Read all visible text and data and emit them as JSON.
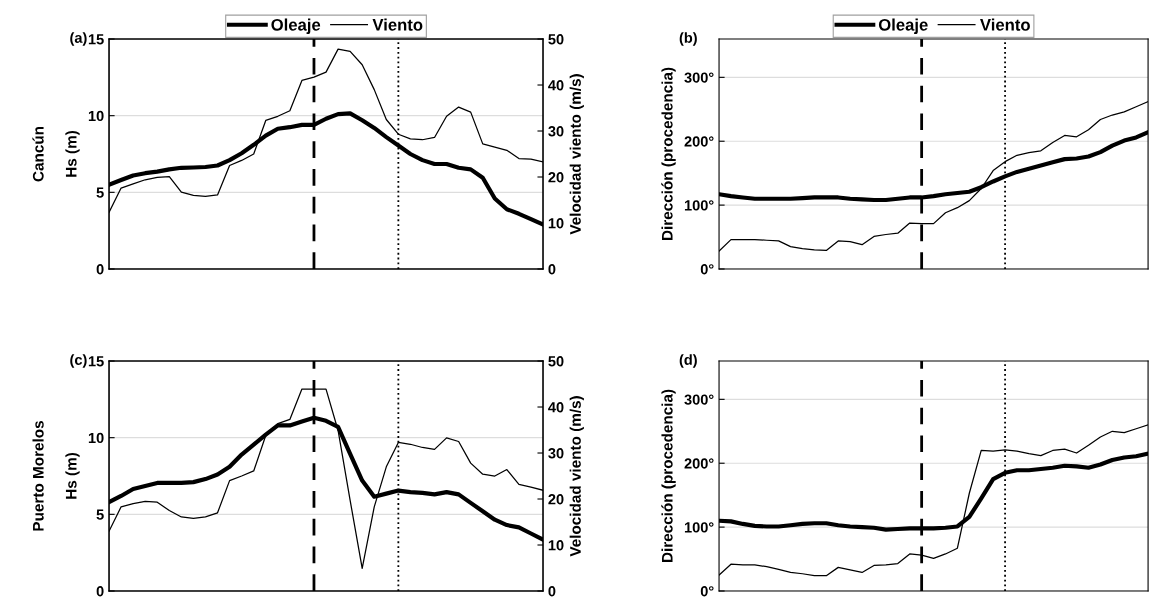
{
  "chart_data": [
    {
      "type": "line",
      "title": "(a)",
      "annotations": [
        "Cancún"
      ],
      "ylabel": "Hs (m)",
      "y2label": "Velocidad viento (m/s)",
      "categories": [
        null,
        null,
        null,
        null,
        null,
        null,
        null,
        null,
        null,
        null,
        null,
        null,
        null,
        null,
        null,
        null,
        null,
        null,
        null,
        null,
        null,
        null,
        null,
        null,
        null,
        null,
        null,
        null,
        null,
        null,
        null,
        null,
        null,
        null,
        null,
        null,
        null
      ],
      "series": [
        {
          "name": "Oleaje",
          "color": "#000000",
          "values": [
            5.5,
            5.8,
            6.1,
            6.25,
            6.35,
            6.5,
            6.6,
            6.62,
            6.65,
            6.75,
            7.1,
            7.55,
            8.1,
            8.7,
            9.15,
            9.25,
            9.4,
            9.4,
            9.8,
            10.1,
            10.15,
            9.7,
            9.2,
            8.6,
            8.05,
            7.5,
            7.1,
            6.85,
            6.85,
            6.6,
            6.5,
            5.95,
            4.6,
            3.9,
            3.6,
            3.25,
            2.9
          ]
        },
        {
          "name": "Viento",
          "color": "#000000",
          "axis": "y2",
          "values": [
            12.3,
            17.6,
            18.5,
            19.4,
            19.9,
            20.1,
            16.7,
            16.0,
            15.8,
            16.1,
            22.5,
            23.6,
            25.0,
            32.3,
            33.2,
            34.4,
            41.0,
            41.7,
            42.8,
            47.8,
            47.3,
            44.4,
            39.0,
            32.5,
            29.3,
            28.3,
            28.1,
            28.6,
            33.2,
            35.2,
            34.1,
            27.2,
            26.5,
            25.8,
            24.0,
            23.9,
            23.3
          ]
        }
      ],
      "ylim": [
        0,
        15
      ],
      "yticks": [
        0,
        5,
        10,
        15
      ],
      "y2lim": [
        0,
        50
      ],
      "y2ticks": [
        0,
        10,
        20,
        30,
        40,
        50
      ],
      "grid": "y",
      "legend": "top"
    },
    {
      "type": "line",
      "title": "(b)",
      "ylabel": "Dirección (procedencia)",
      "categories": [
        null,
        null,
        null,
        null,
        null,
        null,
        null,
        null,
        null,
        null,
        null,
        null,
        null,
        null,
        null,
        null,
        null,
        null,
        null,
        null,
        null,
        null,
        null,
        null,
        null,
        null,
        null,
        null,
        null,
        null,
        null,
        null,
        null,
        null,
        null,
        null,
        null
      ],
      "series": [
        {
          "name": "Oleaje",
          "color": "#000000",
          "values": [
            117,
            114,
            112,
            110,
            110,
            110,
            110,
            111,
            112,
            112,
            112,
            110,
            109,
            108,
            108,
            110,
            112,
            112,
            114,
            117,
            119,
            121,
            128,
            137,
            145,
            152,
            157,
            162,
            167,
            172,
            173,
            176,
            183,
            193,
            201,
            206,
            214
          ]
        },
        {
          "name": "Viento",
          "color": "#000000",
          "values": [
            28,
            46,
            46,
            46,
            45,
            44,
            35,
            32,
            30,
            29,
            44,
            43,
            38,
            51,
            54,
            56,
            72,
            71,
            71,
            88,
            96,
            107,
            126,
            154,
            168,
            178,
            182,
            185,
            198,
            209,
            207,
            218,
            234,
            241,
            246,
            254,
            262
          ]
        }
      ],
      "ylim": [
        0,
        360
      ],
      "yticks": [
        {
          "value": 0,
          "label": "0°"
        },
        {
          "value": 100,
          "label": "100°"
        },
        {
          "value": 200,
          "label": "200°"
        },
        {
          "value": 300,
          "label": "300°"
        }
      ],
      "grid": "y",
      "legend": "top"
    },
    {
      "type": "line",
      "title": "(c)",
      "annotations": [
        "Puerto Morelos"
      ],
      "ylabel": "Hs (m)",
      "y2label": "Velocidad viento (m/s)",
      "categories": [
        null,
        null,
        null,
        null,
        null,
        null,
        null,
        null,
        null,
        null,
        null,
        null,
        null,
        null,
        null,
        null,
        null,
        null,
        null,
        null,
        null,
        null,
        null,
        null,
        null,
        null,
        null,
        null,
        null,
        null,
        null,
        null,
        null,
        null,
        null,
        null,
        null
      ],
      "series": [
        {
          "color": "#000000",
          "values": [
            5.8,
            6.2,
            6.65,
            6.85,
            7.05,
            7.05,
            7.05,
            7.1,
            7.3,
            7.6,
            8.1,
            8.9,
            9.55,
            10.2,
            10.8,
            10.8,
            11.05,
            11.3,
            11.1,
            10.7,
            8.95,
            7.2,
            6.15,
            6.35,
            6.55,
            6.45,
            6.4,
            6.3,
            6.45,
            6.3,
            5.75,
            5.2,
            4.65,
            4.3,
            4.15,
            3.75,
            3.35
          ]
        },
        {
          "color": "#000000",
          "axis": "y2",
          "values": [
            13.0,
            18.3,
            19.0,
            19.5,
            19.3,
            17.5,
            16.1,
            15.8,
            16.1,
            17.0,
            24.0,
            25.0,
            26.1,
            33.8,
            36.4,
            37.3,
            43.9,
            43.9,
            43.9,
            34.9,
            19.7,
            4.9,
            18.3,
            27.0,
            32.3,
            31.9,
            31.2,
            30.8,
            33.3,
            32.5,
            27.8,
            25.4,
            25.0,
            26.4,
            23.2,
            22.6,
            21.9
          ]
        }
      ],
      "ylim": [
        0,
        15
      ],
      "yticks": [
        0,
        5,
        10,
        15
      ],
      "y2lim": [
        0,
        50
      ],
      "y2ticks": [
        0,
        10,
        20,
        30,
        40,
        50
      ],
      "grid": "y"
    },
    {
      "type": "line",
      "title": "(d)",
      "ylabel": "Dirección (procedencia)",
      "categories": [
        null,
        null,
        null,
        null,
        null,
        null,
        null,
        null,
        null,
        null,
        null,
        null,
        null,
        null,
        null,
        null,
        null,
        null,
        null,
        null,
        null,
        null,
        null,
        null,
        null,
        null,
        null,
        null,
        null,
        null,
        null,
        null,
        null,
        null,
        null,
        null,
        null
      ],
      "series": [
        {
          "color": "#000000",
          "values": [
            110,
            109,
            105,
            102,
            101,
            101,
            103,
            105,
            106,
            106,
            103,
            101,
            100,
            99,
            96,
            97,
            98,
            98,
            98,
            99,
            101,
            116,
            145,
            175,
            185,
            189,
            189,
            191,
            193,
            196,
            195,
            193,
            198,
            205,
            209,
            211,
            215
          ]
        },
        {
          "color": "#000000",
          "values": [
            25,
            42,
            41,
            41,
            38,
            34,
            29,
            27,
            24,
            24,
            37,
            33,
            29,
            40,
            41,
            43,
            58,
            56,
            51,
            58,
            67,
            153,
            220,
            219,
            221,
            219,
            215,
            212,
            220,
            222,
            216,
            228,
            241,
            250,
            248,
            254,
            260
          ]
        }
      ],
      "ylim": [
        0,
        360
      ],
      "yticks": [
        {
          "value": 0,
          "label": "0°"
        },
        {
          "value": 100,
          "label": "100°"
        },
        {
          "value": 200,
          "label": "200°"
        },
        {
          "value": 300,
          "label": "300°"
        }
      ],
      "grid": "y"
    }
  ]
}
